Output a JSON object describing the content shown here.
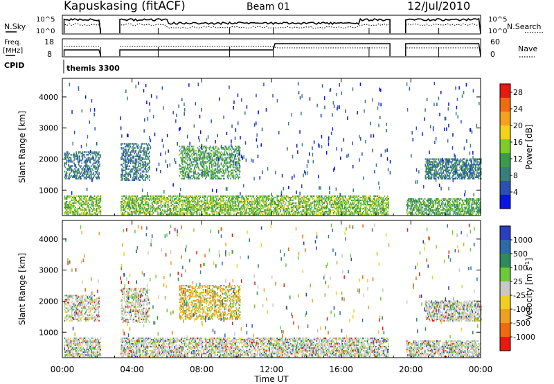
{
  "header": {
    "station": "Kapuskasing (fitACF)",
    "beam": "Beam 01",
    "date": "12/Jul/2010"
  },
  "top_panels": {
    "nsky_label": "N.Sky",
    "nsearch_label": "N.Search",
    "nsky_ticks": [
      "10^5",
      "10^0"
    ],
    "nsearch_ticks": [
      "10^5",
      "10^0"
    ],
    "freq_label_1": "Freq.",
    "freq_label_2": "[MHz]",
    "freq_ticks": [
      "18",
      "8"
    ],
    "nave_label": "Nave",
    "nave_ticks": [
      "60",
      "0"
    ],
    "cpid_label": "CPID",
    "cpid_value": "themis 3300"
  },
  "colors": {
    "axis": "#000000",
    "power_scale": [
      "#0b14e6",
      "#2b4fb3",
      "#3a7d7d",
      "#3b9a4c",
      "#7ecb2a",
      "#f3d21a",
      "#f5a020",
      "#f06a10",
      "#e81a10"
    ],
    "velocity_scale": [
      "#2a3fc0",
      "#2f6aa8",
      "#2f8c5a",
      "#6dc83a",
      "#c8c8c8",
      "#f0cf20",
      "#f0a020",
      "#f06a10",
      "#e81a10"
    ]
  },
  "chart_data": [
    {
      "type": "heatmap",
      "title": "Power",
      "xlabel": "Time UT",
      "ylabel": "Slant Range [km]",
      "x_ticks": [
        "00:00",
        "04:00",
        "08:00",
        "12:00",
        "16:00",
        "20:00",
        "00:00"
      ],
      "y_ticks": [
        1000,
        2000,
        3000,
        4000
      ],
      "xlim_hours": [
        0,
        24
      ],
      "ylim_km": [
        180,
        4600
      ],
      "colorbar_label": "Power [dB]",
      "colorbar_ticks": [
        4,
        8,
        12,
        16,
        20,
        24,
        28
      ],
      "colorbar_range": [
        0,
        30
      ],
      "data_gaps_ut_hours": [
        [
          2.2,
          3.3
        ],
        [
          18.8,
          19.7
        ]
      ],
      "echo_regions": [
        {
          "t_start": 0.1,
          "t_end": 2.1,
          "range_km": [
            1350,
            2250
          ],
          "value": 7
        },
        {
          "t_start": 3.3,
          "t_end": 5.0,
          "range_km": [
            1300,
            2500
          ],
          "value": 7
        },
        {
          "t_start": 6.7,
          "t_end": 10.2,
          "range_km": [
            1350,
            2400
          ],
          "value": 11
        },
        {
          "t_start": 20.8,
          "t_end": 24.0,
          "range_km": [
            1350,
            2000
          ],
          "value": 8
        },
        {
          "t_start": 0.1,
          "t_end": 18.7,
          "range_km": [
            200,
            800
          ],
          "value": 14
        },
        {
          "t_start": 19.7,
          "t_end": 24.0,
          "range_km": [
            200,
            700
          ],
          "value": 12
        }
      ]
    },
    {
      "type": "heatmap",
      "title": "Velocity",
      "xlabel": "Time UT",
      "ylabel": "Slant Range [km]",
      "x_ticks": [
        "00:00",
        "04:00",
        "08:00",
        "12:00",
        "16:00",
        "20:00",
        "00:00"
      ],
      "y_ticks": [
        1000,
        2000,
        3000,
        4000
      ],
      "xlim_hours": [
        0,
        24
      ],
      "ylim_km": [
        180,
        4600
      ],
      "colorbar_label": "Velocity [m s^-1]",
      "colorbar_ticks": [
        1000,
        500,
        100,
        25,
        -25,
        -100,
        -500,
        -1000
      ],
      "data_gaps_ut_hours": [
        [
          2.2,
          3.3
        ],
        [
          18.8,
          19.7
        ]
      ],
      "echo_regions": [
        {
          "t_start": 0.1,
          "t_end": 2.1,
          "range_km": [
            1350,
            2200
          ],
          "value": 0
        },
        {
          "t_start": 3.3,
          "t_end": 5.0,
          "range_km": [
            1300,
            2400
          ],
          "value": 0
        },
        {
          "t_start": 6.7,
          "t_end": 10.2,
          "range_km": [
            1400,
            2500
          ],
          "value": -100
        },
        {
          "t_start": 20.8,
          "t_end": 24.0,
          "range_km": [
            1350,
            2000
          ],
          "value": 0
        },
        {
          "t_start": 0.1,
          "t_end": 18.7,
          "range_km": [
            200,
            800
          ],
          "value": 0
        },
        {
          "t_start": 19.7,
          "t_end": 24.0,
          "range_km": [
            200,
            700
          ],
          "value": 0
        }
      ]
    }
  ]
}
